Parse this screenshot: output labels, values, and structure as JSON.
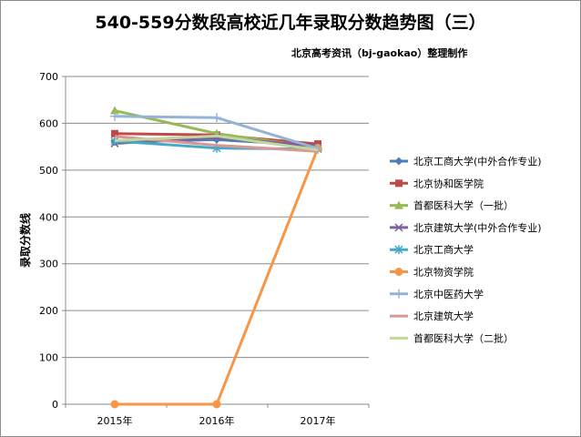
{
  "chart_data": {
    "type": "line",
    "title": "540-559分数段高校近几年录取分数趋势图（三）",
    "subtitle": "北京高考资讯（bj-gaokao）整理制作",
    "ylabel": "录取分数线",
    "xlabel": "",
    "categories": [
      "2015年",
      "2016年",
      "2017年"
    ],
    "ylim": [
      0,
      700
    ],
    "yticks": [
      0,
      100,
      200,
      300,
      400,
      500,
      600,
      700
    ],
    "grid": "horizontal",
    "legend_position": "right",
    "series": [
      {
        "name": "北京工商大学(中外合作专业)",
        "values": [
          560,
          565,
          553
        ],
        "color": "#4a7ebb",
        "marker": "diamond"
      },
      {
        "name": "北京协和医学院",
        "values": [
          578,
          575,
          556
        ],
        "color": "#be4b48",
        "marker": "square"
      },
      {
        "name": "首都医科大学（一批）",
        "values": [
          627,
          578,
          548
        ],
        "color": "#98b954",
        "marker": "triangle"
      },
      {
        "name": "北京建筑大学(中外合作专业)",
        "values": [
          557,
          570,
          551
        ],
        "color": "#7d60a0",
        "marker": "x"
      },
      {
        "name": "北京工商大学",
        "values": [
          562,
          547,
          545
        ],
        "color": "#46aac5",
        "marker": "star"
      },
      {
        "name": "北京物资学院",
        "values": [
          0,
          0,
          547
        ],
        "color": "#f79646",
        "marker": "circle"
      },
      {
        "name": "北京中医药大学",
        "values": [
          615,
          612,
          546
        ],
        "color": "#95b3d7",
        "marker": "plus"
      },
      {
        "name": "北京建筑大学",
        "values": [
          572,
          553,
          540
        ],
        "color": "#d99694",
        "marker": "none"
      },
      {
        "name": "首都医科大学（二批）",
        "values": [
          563,
          573,
          543
        ],
        "color": "#c3d69b",
        "marker": "none"
      }
    ]
  }
}
